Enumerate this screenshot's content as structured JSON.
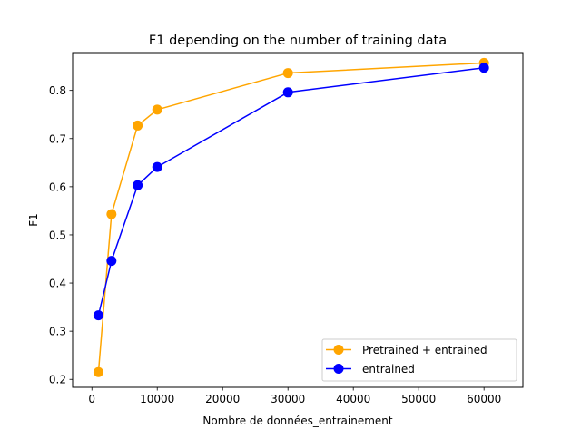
{
  "chart_data": {
    "type": "line",
    "title": "F1 depending on the number of training data",
    "xlabel": "Nombre de données_entrainement",
    "ylabel": "F1",
    "xlim": [
      -2950,
      65950
    ],
    "ylim": [
      0.1835,
      0.8785
    ],
    "xticks": [
      0,
      10000,
      20000,
      30000,
      40000,
      50000,
      60000
    ],
    "xtick_labels": [
      "0",
      "10000",
      "20000",
      "30000",
      "40000",
      "50000",
      "60000"
    ],
    "yticks": [
      0.2,
      0.3,
      0.4,
      0.5,
      0.6,
      0.7,
      0.8
    ],
    "ytick_labels": [
      "0.2",
      "0.3",
      "0.4",
      "0.5",
      "0.6",
      "0.7",
      "0.8"
    ],
    "grid": false,
    "legend_position": "lower right",
    "x": [
      1000,
      3000,
      7000,
      10000,
      30000,
      60000
    ],
    "series": [
      {
        "name": " Pretrained + entrained",
        "color": "#ffa500",
        "marker": "circle",
        "values": [
          0.215,
          0.543,
          0.727,
          0.76,
          0.836,
          0.857
        ]
      },
      {
        "name": "entrained",
        "color": "#0000ff",
        "marker": "circle",
        "values": [
          0.333,
          0.446,
          0.603,
          0.641,
          0.796,
          0.847
        ]
      }
    ]
  }
}
